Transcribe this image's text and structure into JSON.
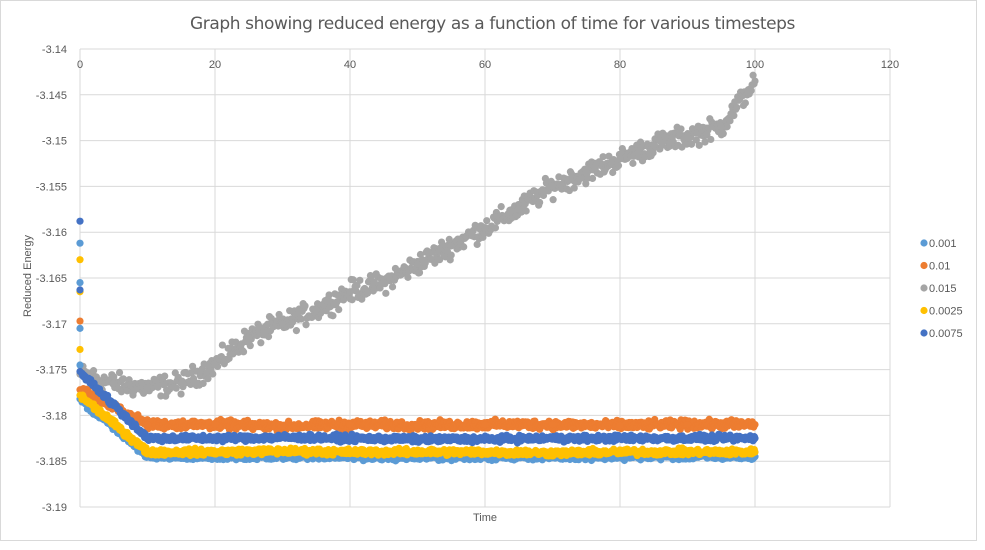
{
  "chart_data": {
    "type": "scatter",
    "title": "Graph showing reduced energy as a function of time for various timesteps",
    "xlabel": "Time",
    "ylabel": "Reduced Energy",
    "xlim": [
      0,
      120
    ],
    "ylim": [
      -3.19,
      -3.14
    ],
    "x_ticks": [
      "0",
      "20",
      "40",
      "60",
      "80",
      "100",
      "120"
    ],
    "y_ticks": [
      "-3.14",
      "-3.145",
      "-3.15",
      "-3.155",
      "-3.16",
      "-3.165",
      "-3.17",
      "-3.175",
      "-3.18",
      "-3.185",
      "-3.19"
    ],
    "grid": true,
    "legend_position": "right",
    "series": [
      {
        "name": "0.001",
        "color": "#5b9bd5",
        "x": [
          0,
          0,
          0,
          0,
          0,
          10,
          20,
          30,
          40,
          50,
          60,
          70,
          80,
          90,
          100
        ],
        "y": [
          -3.1612,
          -3.1655,
          -3.1705,
          -3.1745,
          -3.1782,
          -3.1845,
          -3.1846,
          -3.1845,
          -3.1845,
          -3.1846,
          -3.1845,
          -3.1845,
          -3.1845,
          -3.1845,
          -3.1845
        ]
      },
      {
        "name": "0.01",
        "color": "#ed7d31",
        "x": [
          0,
          0,
          10,
          20,
          30,
          40,
          50,
          60,
          70,
          80,
          90,
          100
        ],
        "y": [
          -3.1697,
          -3.1772,
          -3.181,
          -3.181,
          -3.1812,
          -3.181,
          -3.1811,
          -3.181,
          -3.181,
          -3.1811,
          -3.181,
          -3.181
        ]
      },
      {
        "name": "0.015",
        "color": "#a5a5a5",
        "x": [
          0,
          5,
          10,
          15,
          20,
          25,
          30,
          35,
          40,
          45,
          50,
          55,
          60,
          65,
          70,
          75,
          80,
          85,
          90,
          95,
          100
        ],
        "y": [
          -3.1755,
          -3.1765,
          -3.177,
          -3.1765,
          -3.1745,
          -3.1715,
          -3.17,
          -3.1685,
          -3.1665,
          -3.1655,
          -3.1635,
          -3.1615,
          -3.1595,
          -3.1575,
          -3.155,
          -3.1535,
          -3.152,
          -3.1505,
          -3.1495,
          -3.1485,
          -3.1435
        ]
      },
      {
        "name": "0.0025",
        "color": "#ffc000",
        "x": [
          0,
          0,
          0,
          0,
          10,
          20,
          30,
          40,
          50,
          60,
          70,
          80,
          90,
          100
        ],
        "y": [
          -3.163,
          -3.1665,
          -3.1728,
          -3.1778,
          -3.184,
          -3.184,
          -3.1839,
          -3.184,
          -3.184,
          -3.184,
          -3.1841,
          -3.184,
          -3.184,
          -3.184
        ]
      },
      {
        "name": "0.0075",
        "color": "#4472c4",
        "x": [
          0,
          0,
          0,
          10,
          20,
          30,
          40,
          50,
          60,
          70,
          80,
          90,
          100
        ],
        "y": [
          -3.1588,
          -3.1663,
          -3.1752,
          -3.1825,
          -3.1825,
          -3.1824,
          -3.1825,
          -3.1826,
          -3.1826,
          -3.1825,
          -3.1825,
          -3.1825,
          -3.1825
        ]
      }
    ]
  }
}
